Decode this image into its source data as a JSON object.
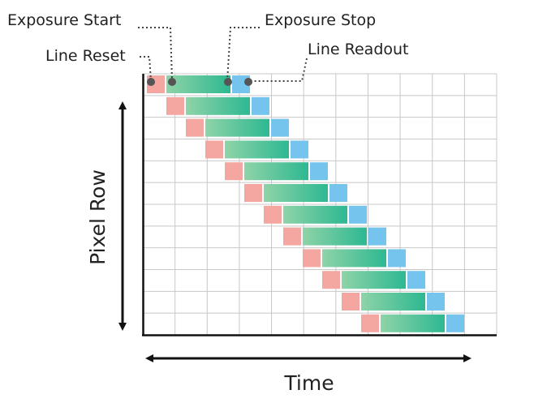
{
  "labels": {
    "exposure_start": "Exposure Start",
    "exposure_stop": "Exposure Stop",
    "line_reset": "Line Reset",
    "line_readout": "Line Readout",
    "y_axis": "Pixel Row",
    "x_axis": "Time"
  },
  "diagram": {
    "grid_columns": 11,
    "grid_rows": 12,
    "row_count": 12,
    "colors": {
      "reset": "#f4a6a0",
      "exposure_start": "#8fd3a8",
      "exposure_end": "#2db891",
      "readout": "#74c4ee",
      "grid": "#c8c8c8",
      "axis": "#111111",
      "leader": "#444444",
      "marker": "#555555"
    }
  }
}
